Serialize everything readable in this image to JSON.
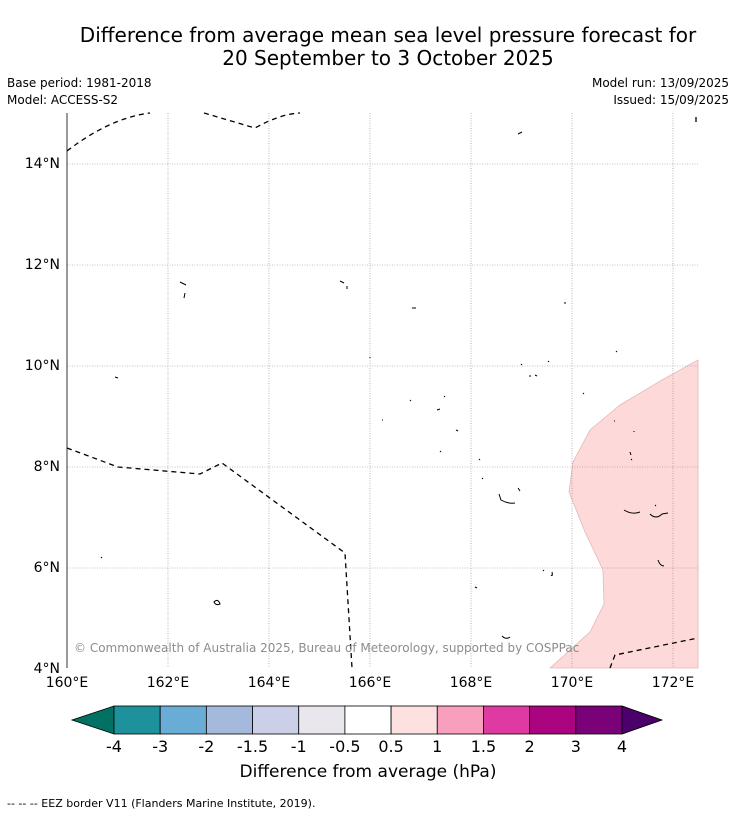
{
  "title": {
    "line1": "Difference from average mean sea level pressure forecast for",
    "line2": "20 September to 3 October 2025"
  },
  "meta": {
    "base_period": "Base period: 1981-2018",
    "model": "Model: ACCESS-S2",
    "model_run": "Model run: 13/09/2025",
    "issued": "Issued: 15/09/2025"
  },
  "map": {
    "lon_range": [
      160,
      172.5
    ],
    "lat_range": [
      4,
      15.1
    ],
    "lat_ticks": [
      "14°N",
      "12°N",
      "10°N",
      "8°N",
      "6°N",
      "4°N"
    ],
    "lon_ticks": [
      "160°E",
      "162°E",
      "164°E",
      "166°E",
      "168°E",
      "170°E",
      "172°E"
    ],
    "grid": true,
    "anomaly_region_color": "#fdd9d9",
    "copyright": "© Commonwealth of Australia 2025, Bureau of Meteorology, supported by COSPPac"
  },
  "colorbar": {
    "labels": [
      "-4",
      "-3",
      "-2",
      "-1.5",
      "-1",
      "-0.5",
      "0.5",
      "1",
      "1.5",
      "2",
      "3",
      "4"
    ],
    "colors": [
      "#007162",
      "#1d929c",
      "#69acd6",
      "#a4b9dc",
      "#cccfe8",
      "#e9e7ed",
      "#ffffff",
      "#fde0e0",
      "#f79fbc",
      "#de3aa1",
      "#aa0480",
      "#7a0178",
      "#4c006b"
    ],
    "title": "Difference from average (hPa)"
  },
  "footnote": "--  --  -- EEZ border V11 (Flanders Marine Institute, 2019)."
}
